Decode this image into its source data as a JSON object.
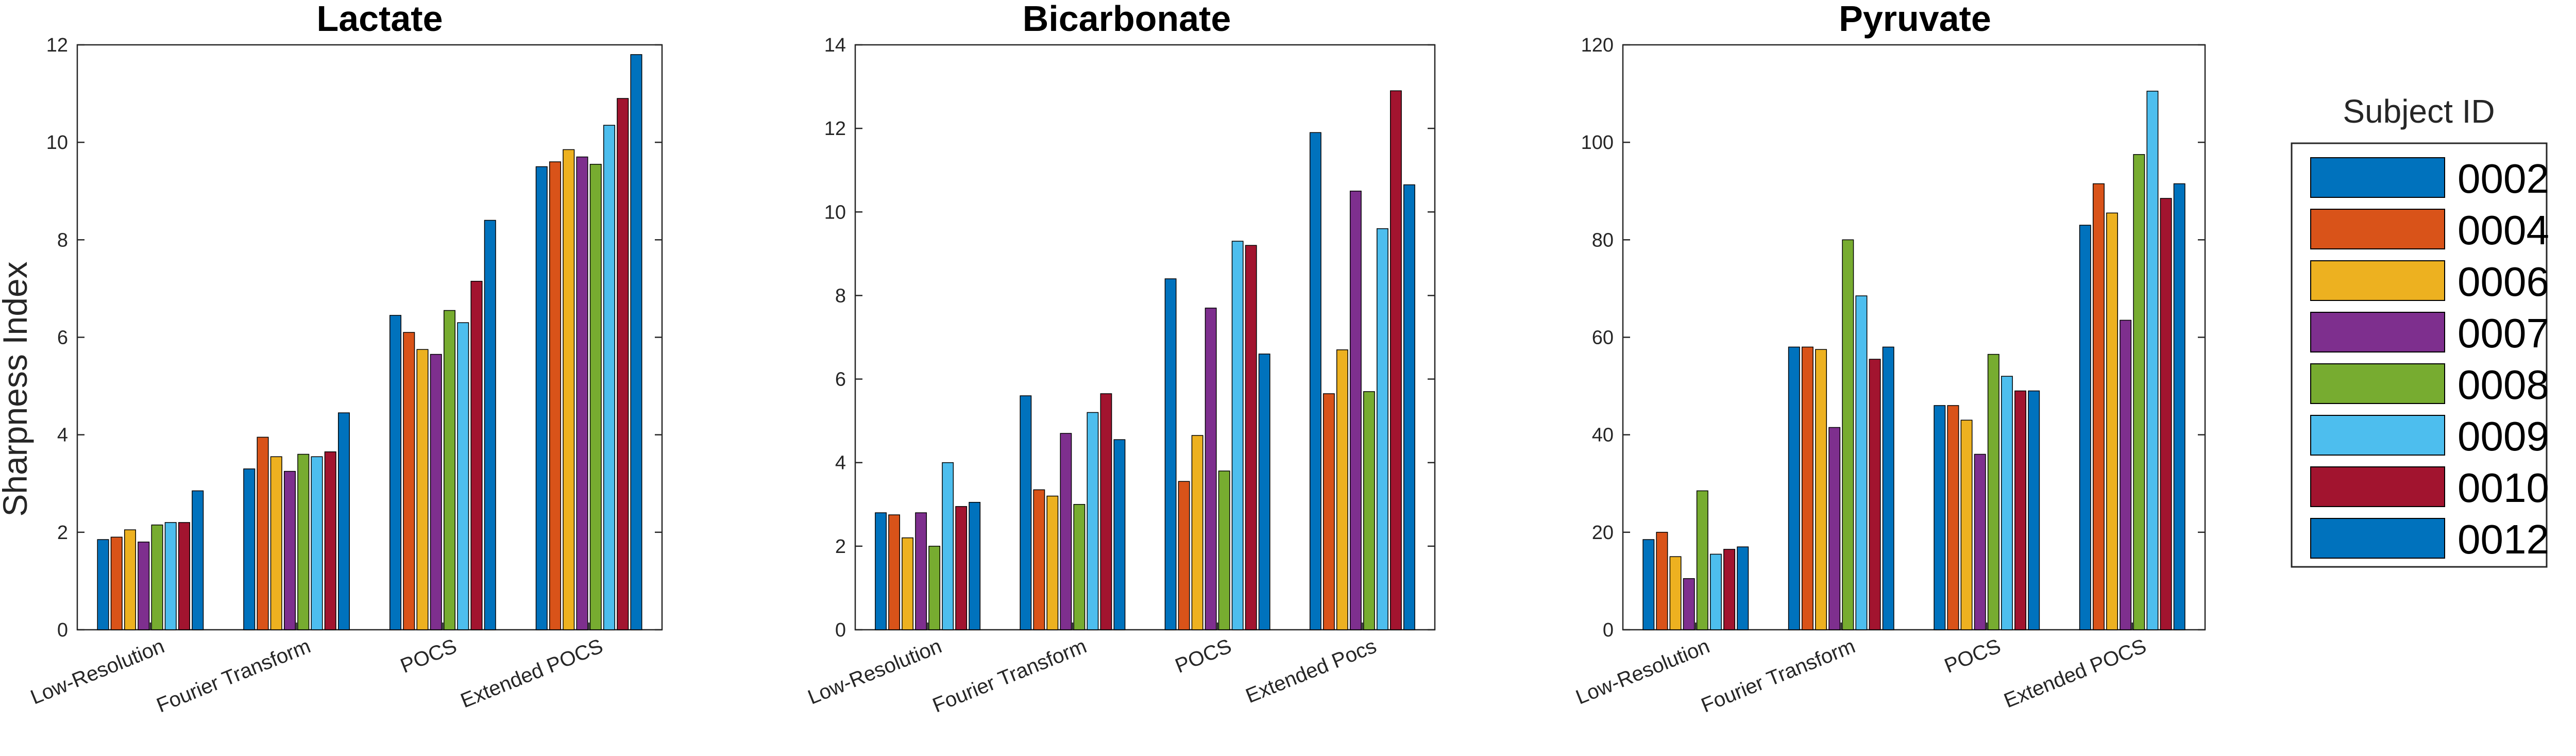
{
  "figure": {
    "ylabel": "Sharpness Index",
    "legend_title": "Subject ID",
    "subjects": [
      "0002",
      "0004",
      "0006",
      "0007",
      "0008",
      "0009",
      "0010",
      "0012"
    ],
    "colors": [
      "#0072BD",
      "#D95319",
      "#EDB120",
      "#7E2F8E",
      "#77AC30",
      "#4DBEEE",
      "#A2142F",
      "#0072BD"
    ]
  },
  "chart_data": [
    {
      "type": "bar",
      "title": "Lactate",
      "xlabel": "",
      "ylabel": "Sharpness Index",
      "ylim": [
        0,
        12
      ],
      "yticks": [
        0,
        2,
        4,
        6,
        8,
        10,
        12
      ],
      "categories": [
        "Low-Resolution",
        "Fourier Transform",
        "POCS",
        "Extended POCS"
      ],
      "series": [
        {
          "name": "0002",
          "values": [
            1.85,
            3.3,
            6.45,
            9.5
          ]
        },
        {
          "name": "0004",
          "values": [
            1.9,
            3.95,
            6.1,
            9.6
          ]
        },
        {
          "name": "0006",
          "values": [
            2.05,
            3.55,
            5.75,
            9.85
          ]
        },
        {
          "name": "0007",
          "values": [
            1.8,
            3.25,
            5.65,
            9.7
          ]
        },
        {
          "name": "0008",
          "values": [
            2.15,
            3.6,
            6.55,
            9.55
          ]
        },
        {
          "name": "0009",
          "values": [
            2.2,
            3.55,
            6.3,
            10.35
          ]
        },
        {
          "name": "0010",
          "values": [
            2.2,
            3.65,
            7.15,
            10.9
          ]
        },
        {
          "name": "0012",
          "values": [
            2.85,
            4.45,
            8.4,
            11.8
          ]
        }
      ]
    },
    {
      "type": "bar",
      "title": "Bicarbonate",
      "xlabel": "",
      "ylabel": "",
      "ylim": [
        0,
        14
      ],
      "yticks": [
        0,
        2,
        4,
        6,
        8,
        10,
        12,
        14
      ],
      "categories": [
        "Low-Resolution",
        "Fourier Transform",
        "POCS",
        "Extended Pocs"
      ],
      "series": [
        {
          "name": "0002",
          "values": [
            2.8,
            5.6,
            8.4,
            11.9
          ]
        },
        {
          "name": "0004",
          "values": [
            2.75,
            3.35,
            3.55,
            5.65
          ]
        },
        {
          "name": "0006",
          "values": [
            2.2,
            3.2,
            4.65,
            6.7
          ]
        },
        {
          "name": "0007",
          "values": [
            2.8,
            4.7,
            7.7,
            10.5
          ]
        },
        {
          "name": "0008",
          "values": [
            2.0,
            3.0,
            3.8,
            5.7
          ]
        },
        {
          "name": "0009",
          "values": [
            4.0,
            5.2,
            9.3,
            9.6
          ]
        },
        {
          "name": "0010",
          "values": [
            2.95,
            5.65,
            9.2,
            12.9
          ]
        },
        {
          "name": "0012",
          "values": [
            3.05,
            4.55,
            6.6,
            10.65
          ]
        }
      ]
    },
    {
      "type": "bar",
      "title": "Pyruvate",
      "xlabel": "",
      "ylabel": "",
      "ylim": [
        0,
        120
      ],
      "yticks": [
        0,
        20,
        40,
        60,
        80,
        100,
        120
      ],
      "categories": [
        "Low-Resolution",
        "Fourier Transform",
        "POCS",
        "Extended POCS"
      ],
      "series": [
        {
          "name": "0002",
          "values": [
            18.5,
            58.0,
            46.0,
            83.0
          ]
        },
        {
          "name": "0004",
          "values": [
            20.0,
            58.0,
            46.0,
            91.5
          ]
        },
        {
          "name": "0006",
          "values": [
            15.0,
            57.5,
            43.0,
            85.5
          ]
        },
        {
          "name": "0007",
          "values": [
            10.5,
            41.5,
            36.0,
            63.5
          ]
        },
        {
          "name": "0008",
          "values": [
            28.5,
            80.0,
            56.5,
            97.5
          ]
        },
        {
          "name": "0009",
          "values": [
            15.5,
            68.5,
            52.0,
            110.5
          ]
        },
        {
          "name": "0010",
          "values": [
            16.5,
            55.5,
            49.0,
            88.5
          ]
        },
        {
          "name": "0012",
          "values": [
            17.0,
            58.0,
            49.0,
            91.5
          ]
        }
      ]
    }
  ]
}
